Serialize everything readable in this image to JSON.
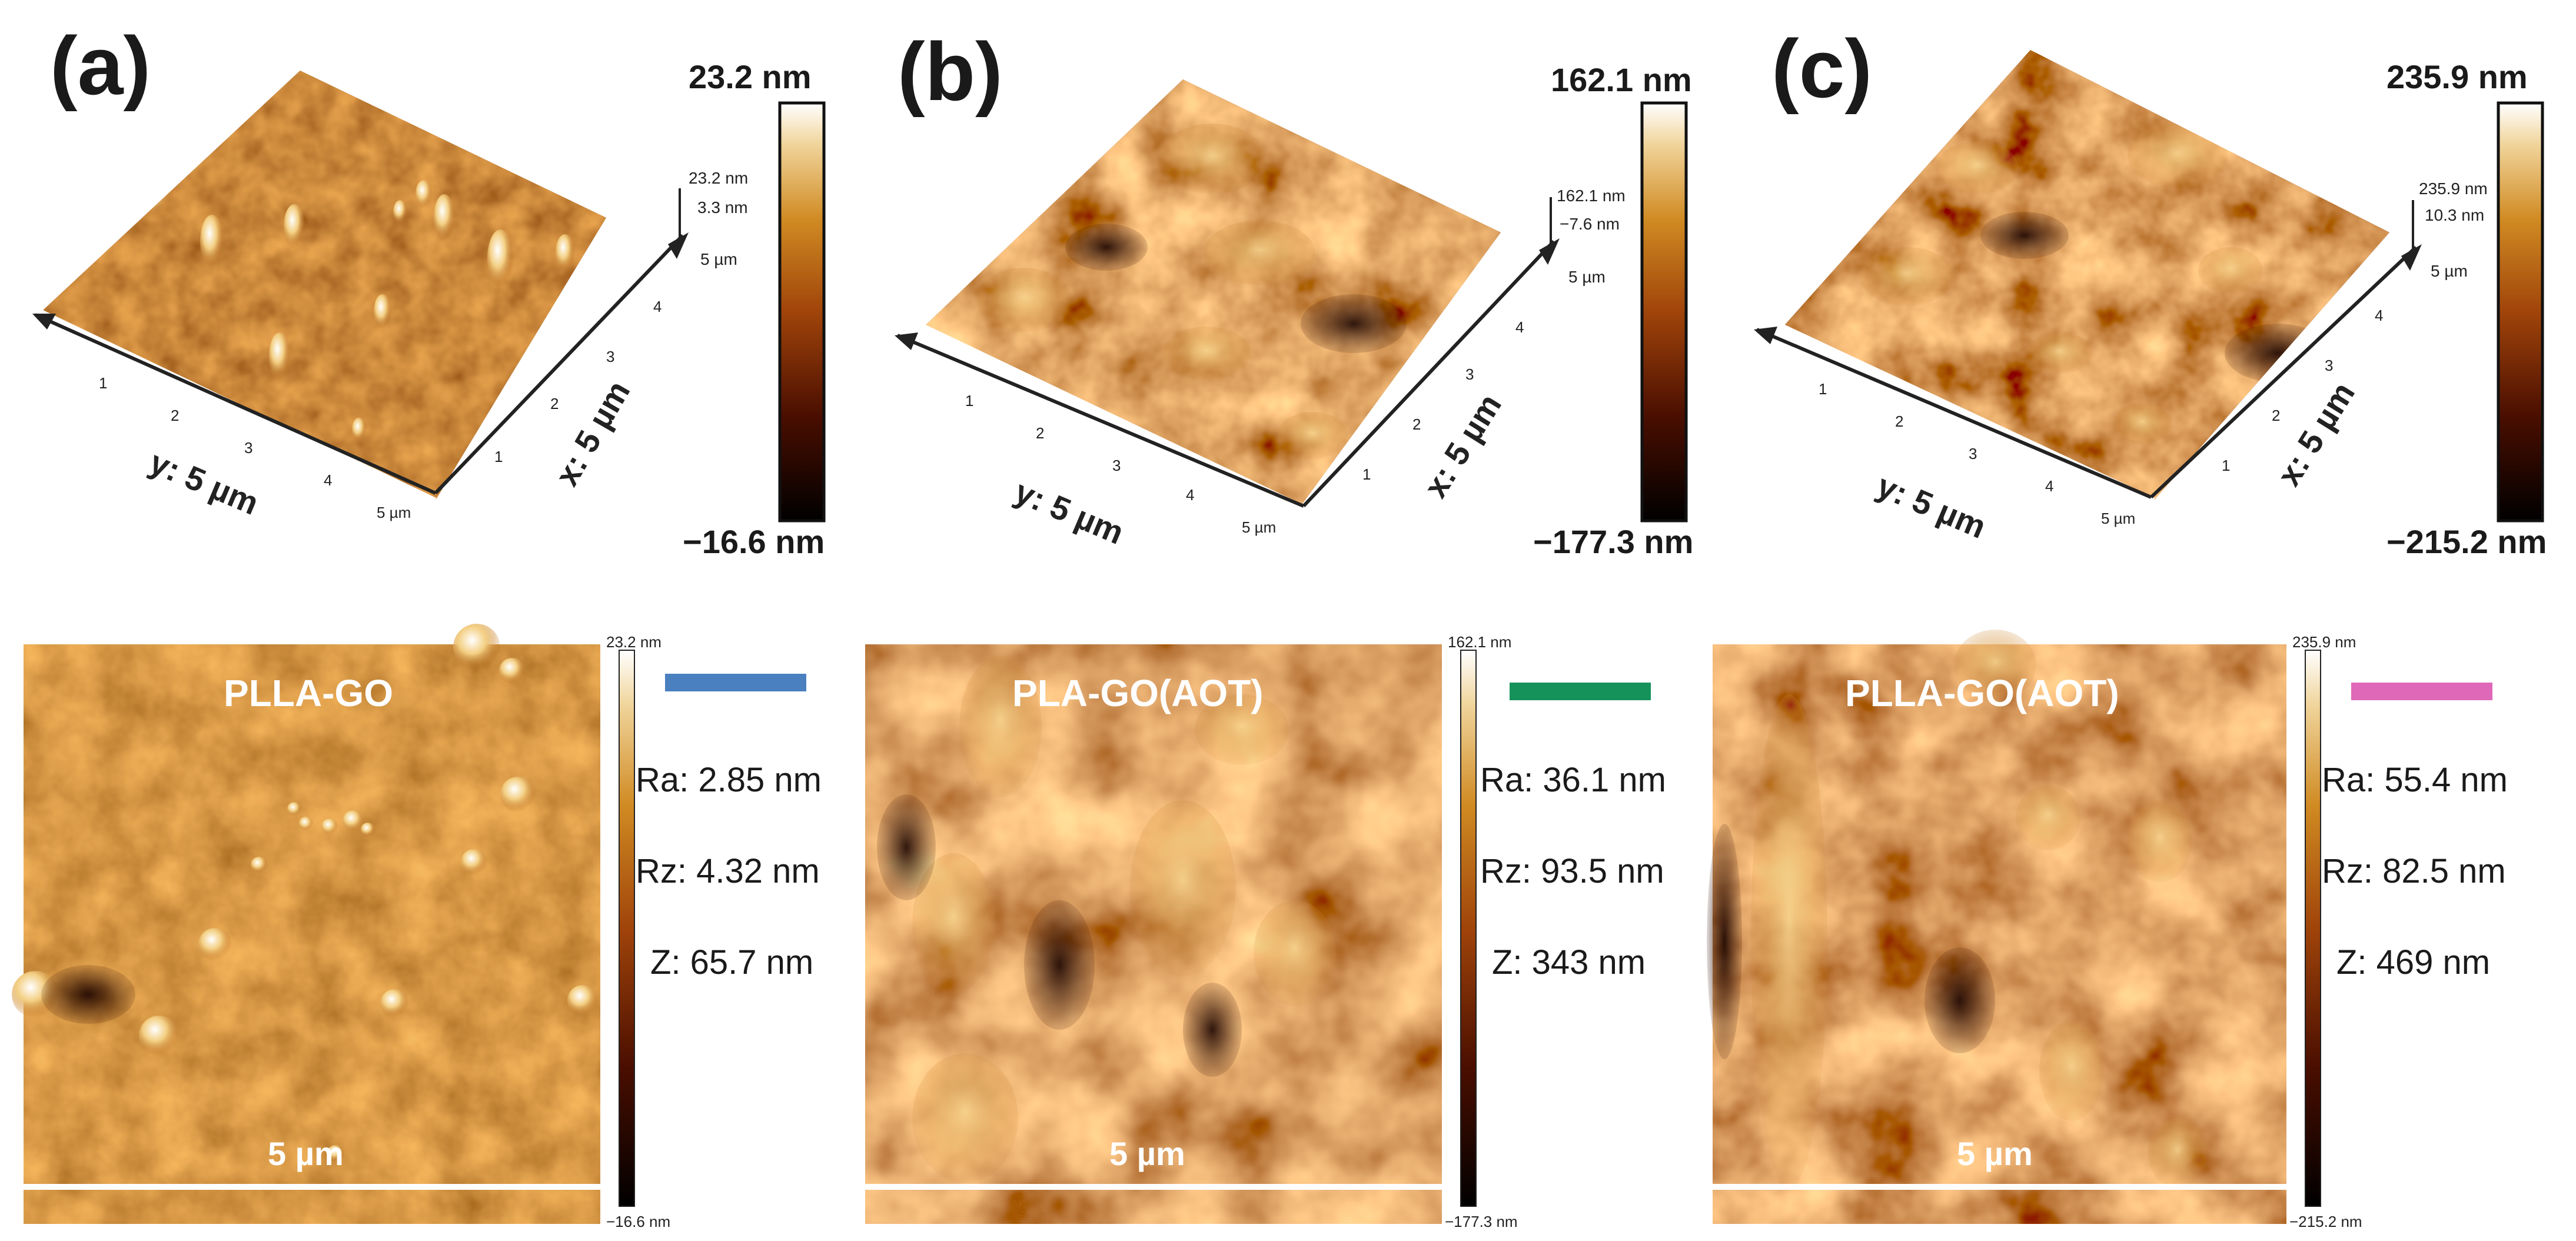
{
  "panels": [
    {
      "letter": "(a)",
      "colorbar_max": "23.2 nm",
      "colorbar_min": "−16.6 nm",
      "inset_top": "23.2 nm",
      "inset_mid": "3.3 nm",
      "inset_z": "5 µm",
      "y_axis_label": "y: 5 µm",
      "x_axis_label": "x: 5 µm",
      "y_ticks": [
        "1",
        "2",
        "3",
        "4",
        "5 µm"
      ],
      "x_ticks": [
        "1",
        "2",
        "3",
        "4"
      ],
      "sample": "PLLA-GO",
      "scale_bar": "5 µm",
      "map_max": "23.2 nm",
      "map_min": "−16.6 nm",
      "legend_color": "#4a7fc0",
      "Ra": "Ra: 2.85 nm",
      "Rz": "Rz: 4.32 nm",
      "Z": "Z: 65.7 nm"
    },
    {
      "letter": "(b)",
      "colorbar_max": "162.1 nm",
      "colorbar_min": "−177.3 nm",
      "inset_top": "162.1 nm",
      "inset_mid": "−7.6 nm",
      "inset_z": "5 µm",
      "y_axis_label": "y: 5 µm",
      "x_axis_label": "x: 5 µm",
      "y_ticks": [
        "1",
        "2",
        "3",
        "4",
        "5 µm"
      ],
      "x_ticks": [
        "1",
        "2",
        "3",
        "4"
      ],
      "sample": "PLA-GO(AOT)",
      "scale_bar": "5 µm",
      "map_max": "162.1 nm",
      "map_min": "−177.3 nm",
      "legend_color": "#14925a",
      "Ra": "Ra: 36.1 nm",
      "Rz": "Rz: 93.5 nm",
      "Z": "Z: 343 nm"
    },
    {
      "letter": "(c)",
      "colorbar_max": "235.9 nm",
      "colorbar_min": "−215.2 nm",
      "inset_top": "235.9 nm",
      "inset_mid": "10.3 nm",
      "inset_z": "5 µm",
      "y_axis_label": "y: 5 µm",
      "x_axis_label": "x: 5 µm",
      "y_ticks": [
        "1",
        "2",
        "3",
        "4",
        "5 µm"
      ],
      "x_ticks": [
        "1",
        "2",
        "3",
        "4"
      ],
      "sample": "PLLA-GO(AOT)",
      "scale_bar": "5 µm",
      "map_max": "235.9 nm",
      "map_min": "−215.2 nm",
      "legend_color": "#e068b8",
      "Ra": "Ra: 55.4 nm",
      "Rz": "Rz: 82.5 nm",
      "Z": "Z: 469 nm"
    }
  ]
}
